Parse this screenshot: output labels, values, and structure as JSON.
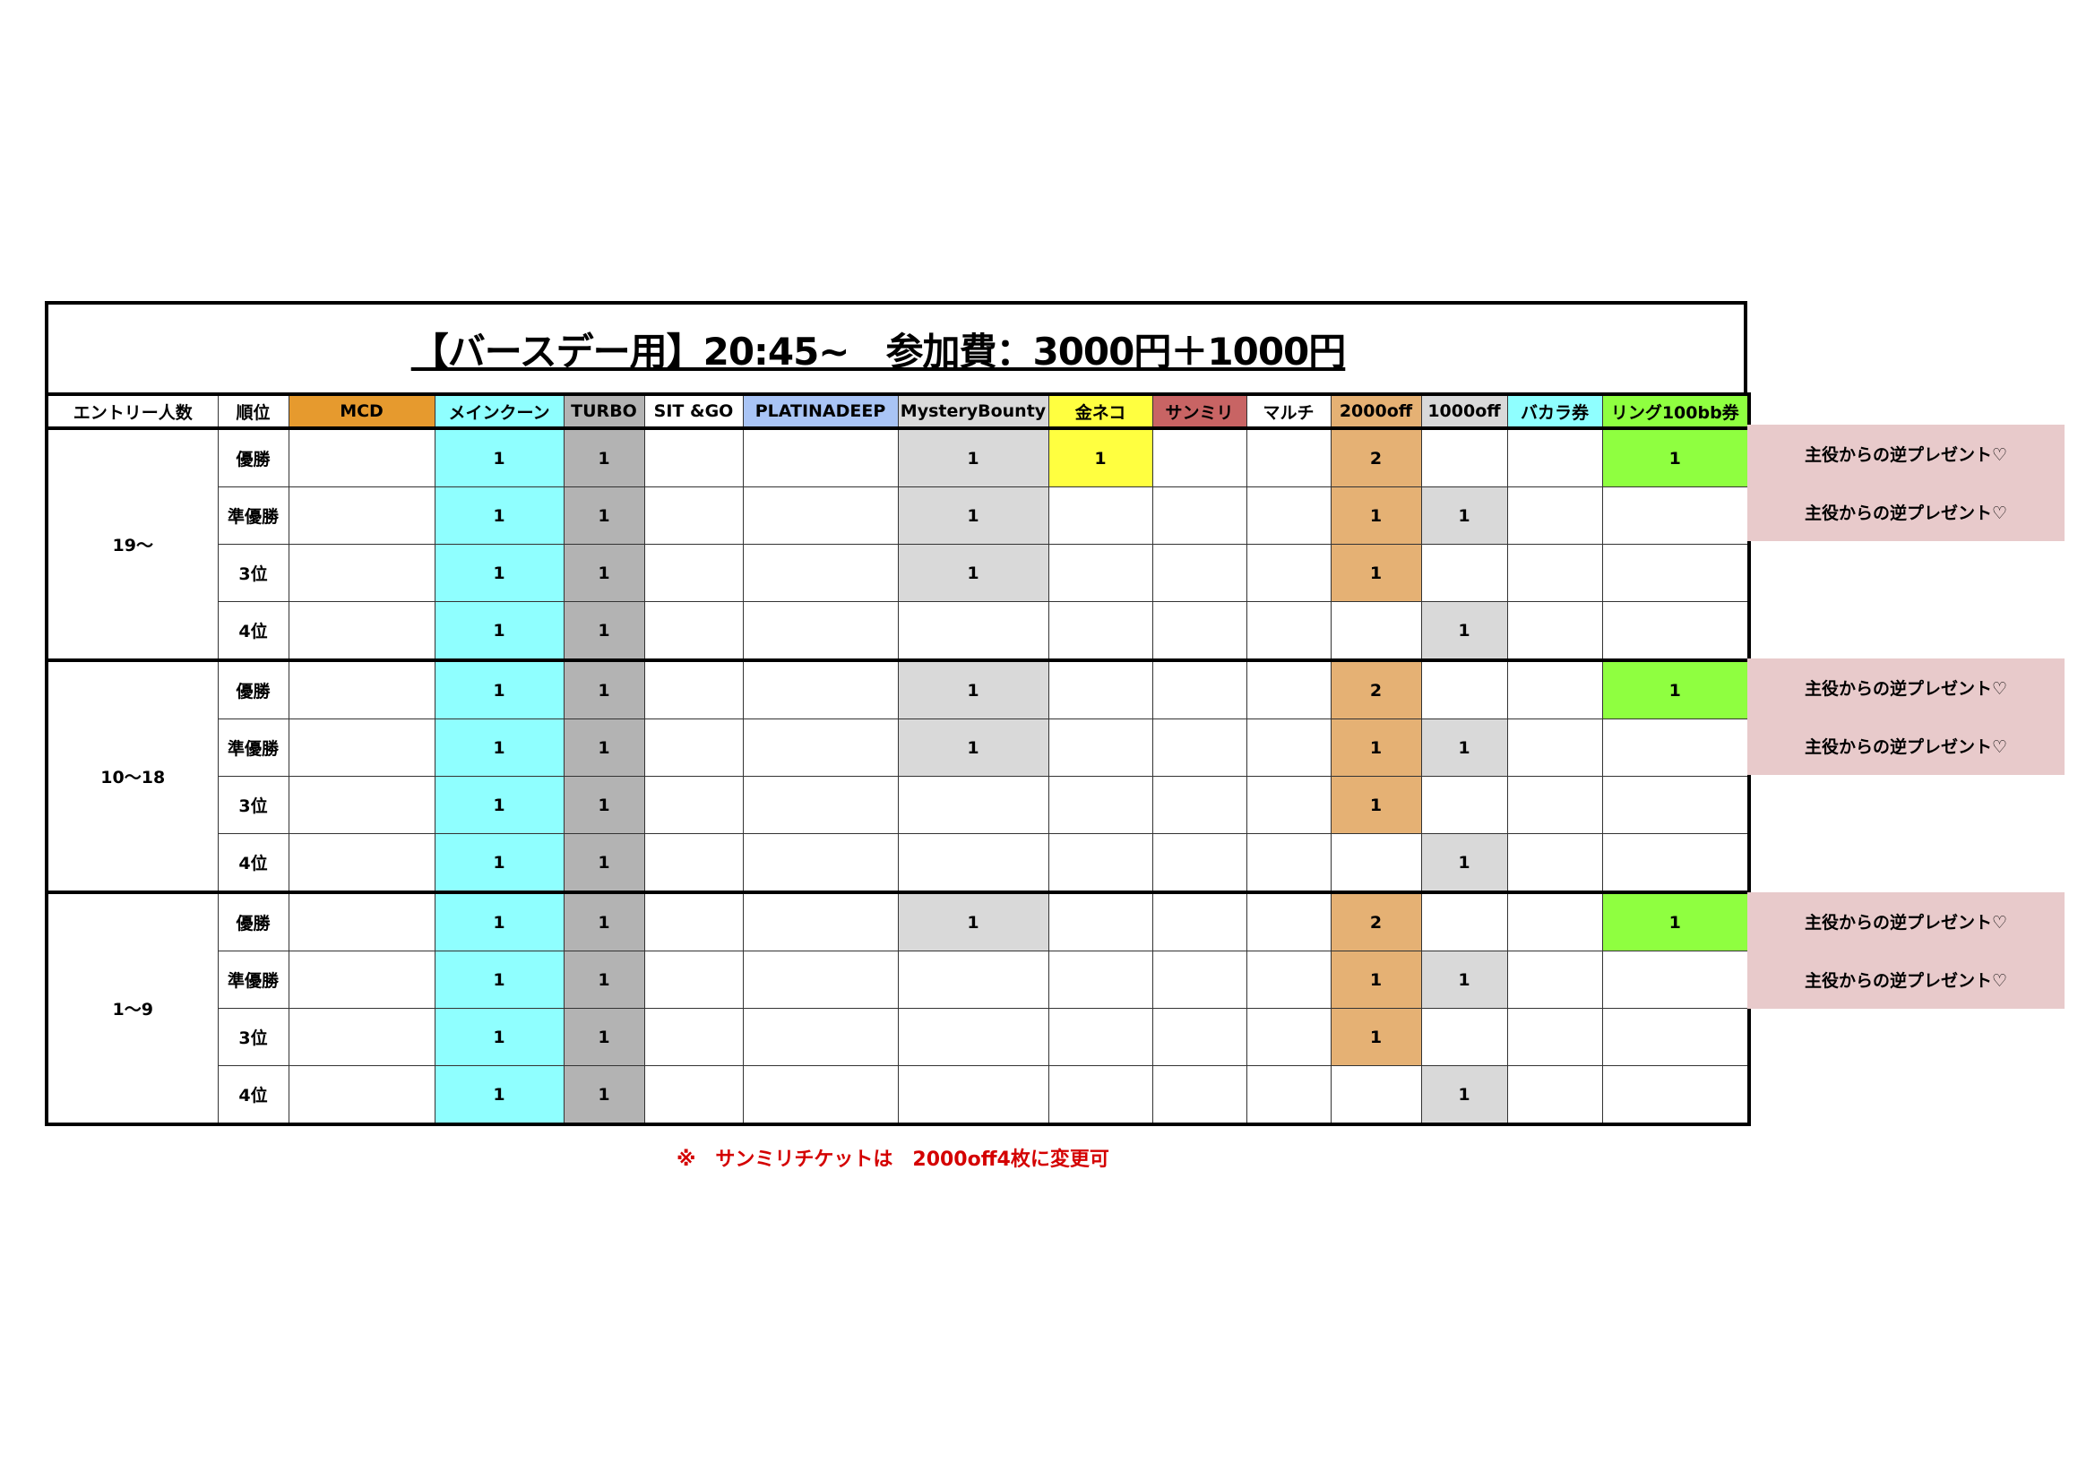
{
  "title": "【バースデー用】20:45~　参加費：3000円＋1000円",
  "headers": [
    "エントリー人数",
    "順位",
    "MCD",
    "メインクーン",
    "TURBO",
    "SIT &GO",
    "PLATINADEEP",
    "MysteryBounty",
    "金ネコ",
    "サンミリ",
    "マルチ",
    "2000off",
    "1000off",
    "バカラ券",
    "リング100bb券"
  ],
  "header_colors": [
    "#ffffff",
    "#ffffff",
    "#e69a2e",
    "#8fffff",
    "#b3b3b3",
    "#ffffff",
    "#a9c4f5",
    "#d9d9d9",
    "#ffff40",
    "#c86464",
    "#ffffff",
    "#e5b174",
    "#d9d9d9",
    "#8fffff",
    "#8fff40"
  ],
  "cell_colors": [
    "#e69a2e",
    "#8fffff",
    "#b3b3b3",
    "#ffffff",
    "#a9c4f5",
    "#d9d9d9",
    "#ffff40",
    "#c86464",
    "#ffffff",
    "#e5b174",
    "#d9d9d9",
    "#8fffff",
    "#8fff40"
  ],
  "groups": [
    {
      "entry": "19〜",
      "rows": [
        {
          "rank": "優勝",
          "values": [
            "",
            "1",
            "1",
            "",
            "",
            "1",
            "1",
            "",
            "",
            "2",
            "",
            "",
            "1"
          ],
          "note": "主役からの逆プレゼント♡"
        },
        {
          "rank": "準優勝",
          "values": [
            "",
            "1",
            "1",
            "",
            "",
            "1",
            "",
            "",
            "",
            "1",
            "1",
            "",
            ""
          ],
          "note": "主役からの逆プレゼント♡"
        },
        {
          "rank": "3位",
          "values": [
            "",
            "1",
            "1",
            "",
            "",
            "1",
            "",
            "",
            "",
            "1",
            "",
            "",
            ""
          ]
        },
        {
          "rank": "4位",
          "values": [
            "",
            "1",
            "1",
            "",
            "",
            "",
            "",
            "",
            "",
            "",
            "1",
            "",
            ""
          ]
        }
      ]
    },
    {
      "entry": "10〜18",
      "rows": [
        {
          "rank": "優勝",
          "values": [
            "",
            "1",
            "1",
            "",
            "",
            "1",
            "",
            "",
            "",
            "2",
            "",
            "",
            "1"
          ],
          "note": "主役からの逆プレゼント♡"
        },
        {
          "rank": "準優勝",
          "values": [
            "",
            "1",
            "1",
            "",
            "",
            "1",
            "",
            "",
            "",
            "1",
            "1",
            "",
            ""
          ],
          "note": "主役からの逆プレゼント♡"
        },
        {
          "rank": "3位",
          "values": [
            "",
            "1",
            "1",
            "",
            "",
            "",
            "",
            "",
            "",
            "1",
            "",
            "",
            ""
          ]
        },
        {
          "rank": "4位",
          "values": [
            "",
            "1",
            "1",
            "",
            "",
            "",
            "",
            "",
            "",
            "",
            "1",
            "",
            ""
          ]
        }
      ]
    },
    {
      "entry": "1〜9",
      "rows": [
        {
          "rank": "優勝",
          "values": [
            "",
            "1",
            "1",
            "",
            "",
            "1",
            "",
            "",
            "",
            "2",
            "",
            "",
            "1"
          ],
          "note": "主役からの逆プレゼント♡"
        },
        {
          "rank": "準優勝",
          "values": [
            "",
            "1",
            "1",
            "",
            "",
            "",
            "",
            "",
            "",
            "1",
            "1",
            "",
            ""
          ],
          "note": "主役からの逆プレゼント♡"
        },
        {
          "rank": "3位",
          "values": [
            "",
            "1",
            "1",
            "",
            "",
            "",
            "",
            "",
            "",
            "1",
            "",
            "",
            ""
          ]
        },
        {
          "rank": "4位",
          "values": [
            "",
            "1",
            "1",
            "",
            "",
            "",
            "",
            "",
            "",
            "",
            "1",
            "",
            ""
          ]
        }
      ]
    }
  ],
  "footnote": "※　サンミリチケットは　2000off4枚に変更可"
}
